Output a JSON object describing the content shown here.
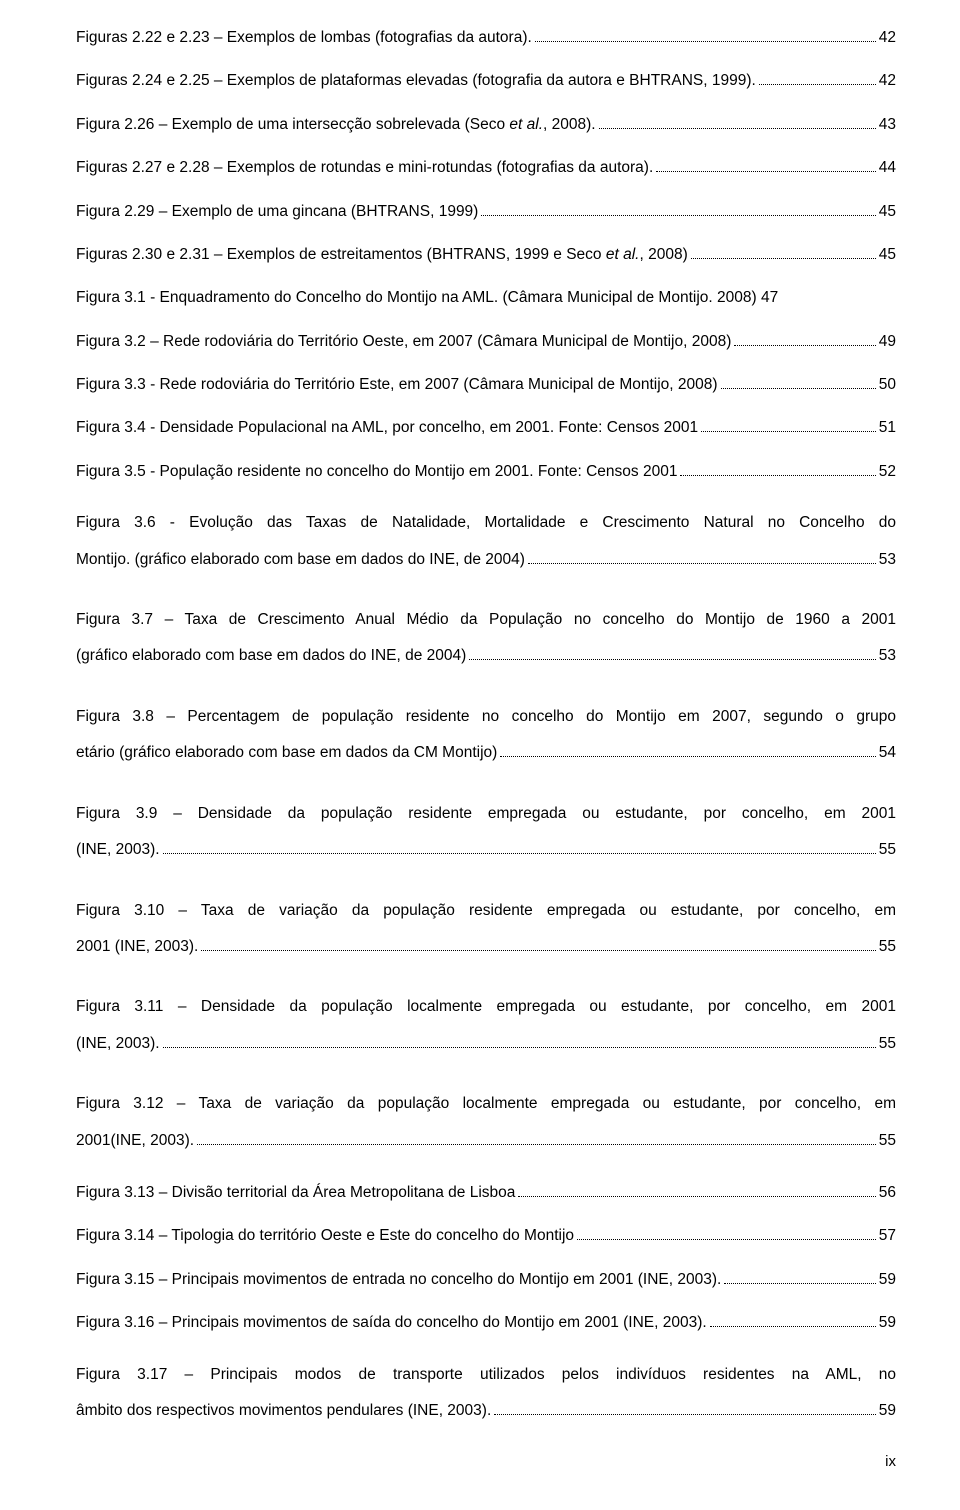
{
  "entries": [
    {
      "text": "Figuras 2.22 e 2.23 – Exemplos de lombas (fotografias da autora).",
      "page": "42",
      "multiline": false
    },
    {
      "text": "Figuras 2.24 e 2.25 – Exemplos de plataformas elevadas (fotografia da autora e BHTRANS, 1999).",
      "page": "42",
      "multiline": false
    },
    {
      "text": "Figura 2.26 – Exemplo de uma intersecção sobrelevada (Seco <i>et al.</i>, 2008).",
      "page": "43",
      "multiline": false
    },
    {
      "text": "Figuras 2.27 e 2.28 – Exemplos de rotundas e mini-rotundas (fotografias da autora).",
      "page": "44",
      "multiline": false
    },
    {
      "text": "Figura 2.29 – Exemplo de uma gincana (BHTRANS, 1999)",
      "page": "45",
      "multiline": false
    },
    {
      "text": "Figuras 2.30 e 2.31 – Exemplos de estreitamentos (BHTRANS, 1999 e Seco <i>et al.</i>, 2008)",
      "page": "45",
      "multiline": false
    },
    {
      "text": "Figura 3.1 - Enquadramento do Concelho do Montijo na AML. (Câmara Municipal de Montijo. 2008) 47",
      "page": "",
      "multiline": false,
      "nodots": true
    },
    {
      "text": "Figura 3.2 – Rede rodoviária do Território Oeste, em 2007 (Câmara Municipal de Montijo, 2008)",
      "page": "49",
      "multiline": false
    },
    {
      "text": "Figura 3.3 - Rede rodoviária do Território Este, em 2007 (Câmara Municipal de Montijo, 2008)",
      "page": "50",
      "multiline": false
    },
    {
      "text": "Figura 3.4 - Densidade Populacional na AML, por concelho, em 2001. Fonte: Censos 2001",
      "page": "51",
      "multiline": false
    },
    {
      "text": "Figura 3.5 - População residente no concelho do Montijo em 2001. Fonte: Censos 2001",
      "page": "52",
      "multiline": false
    },
    {
      "lead": "Figura 3.6 - Evolução das Taxas de Natalidade, Mortalidade e Crescimento Natural no Concelho do",
      "tail": "Montijo. (gráfico elaborado com base em dados do INE, de 2004)",
      "page": "53",
      "multiline": true
    },
    {
      "lead": "Figura 3.7 – Taxa de Crescimento Anual Médio da População no concelho do Montijo de 1960 a 2001",
      "tail": "(gráfico elaborado com base em dados do INE, de 2004)",
      "page": "53",
      "multiline": true
    },
    {
      "lead": "Figura 3.8 – Percentagem de população residente no concelho do Montijo em 2007, segundo o grupo",
      "tail": "etário (gráfico elaborado com base em dados da CM Montijo)",
      "page": "54",
      "multiline": true
    },
    {
      "lead": "Figura 3.9 – Densidade da população residente empregada ou estudante, por concelho, em 2001",
      "tail": "(INE, 2003).",
      "page": "55",
      "multiline": true
    },
    {
      "lead": "Figura 3.10 – Taxa de variação da população residente empregada ou estudante, por concelho, em",
      "tail": "2001 (INE, 2003).",
      "page": "55",
      "multiline": true
    },
    {
      "lead": "Figura 3.11 – Densidade da população localmente empregada ou estudante, por concelho, em 2001",
      "tail": "(INE, 2003).",
      "page": "55",
      "multiline": true
    },
    {
      "lead": "Figura 3.12 – Taxa de variação da população localmente empregada ou estudante, por concelho, em",
      "tail": "2001(INE, 2003).",
      "page": "55",
      "multiline": true
    },
    {
      "text": "Figura 3.13 – Divisão territorial da Área Metropolitana de Lisboa",
      "page": "56",
      "multiline": false
    },
    {
      "text": "Figura 3.14 – Tipologia do território Oeste e Este do concelho do Montijo",
      "page": "57",
      "multiline": false
    },
    {
      "text": "Figura 3.15 – Principais movimentos de entrada no concelho do Montijo em 2001 (INE, 2003).",
      "page": "59",
      "multiline": false
    },
    {
      "text": "Figura 3.16 – Principais movimentos de saída do concelho do Montijo em 2001 (INE, 2003).",
      "page": "59",
      "multiline": false
    },
    {
      "lead": "Figura 3.17 – Principais modos de transporte utilizados pelos indivíduos residentes na AML, no",
      "tail": "âmbito dos respectivos movimentos pendulares (INE, 2003).",
      "page": "59",
      "multiline": true
    }
  ],
  "footer": "ix"
}
